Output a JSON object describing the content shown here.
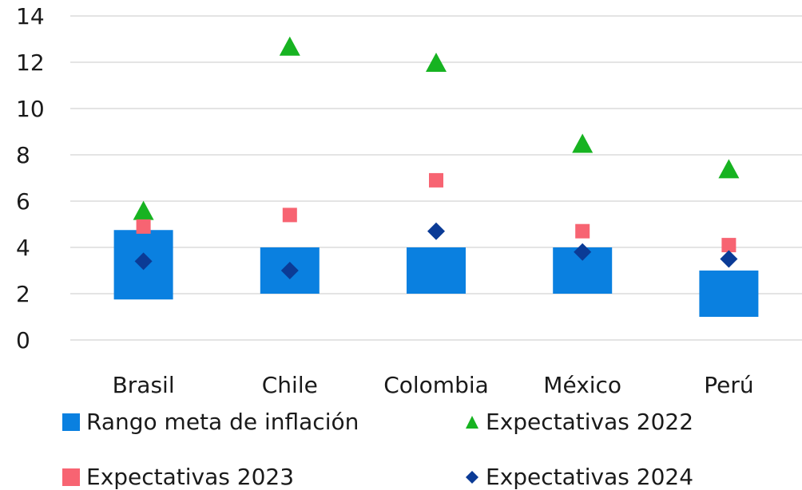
{
  "chart_data": {
    "type": "scatter",
    "title": "",
    "xlabel": "",
    "ylabel": "",
    "categories": [
      "Brasil",
      "Chile",
      "Colombia",
      "México",
      "Perú"
    ],
    "ylim": [
      0,
      14
    ],
    "yticks": [
      0,
      2,
      4,
      6,
      8,
      10,
      12,
      14
    ],
    "grid": true,
    "legend_position": "bottom",
    "range_series": {
      "name": "Rango meta de inflación",
      "type": "floating-bar",
      "color": "#0a80e0",
      "low": [
        1.75,
        2,
        2,
        2,
        1
      ],
      "high": [
        4.75,
        4,
        4,
        4,
        3
      ]
    },
    "series": [
      {
        "name": "Expectativas 2022",
        "marker": "triangle",
        "color": "#17b321",
        "values": [
          5.5,
          12.6,
          11.9,
          8.4,
          7.3
        ]
      },
      {
        "name": "Expectativas 2023",
        "marker": "square",
        "color": "#f76472",
        "values": [
          4.9,
          5.4,
          6.9,
          4.7,
          4.1
        ]
      },
      {
        "name": "Expectativas 2024",
        "marker": "diamond",
        "color": "#0b3b96",
        "values": [
          3.4,
          3.0,
          4.7,
          3.8,
          3.5
        ]
      }
    ]
  },
  "colors": {
    "grid": "#d4d4d4",
    "text": "#1a1a1a"
  }
}
